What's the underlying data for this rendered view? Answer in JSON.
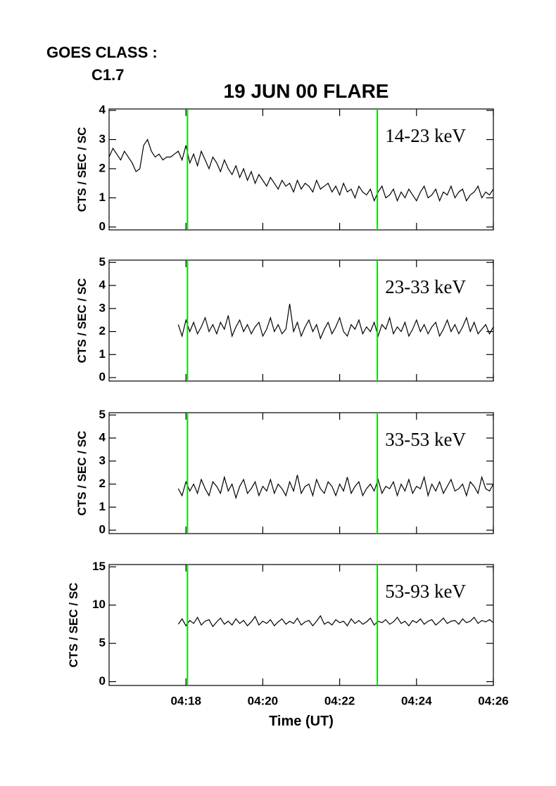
{
  "header": {
    "goes_label": "GOES CLASS :",
    "goes_class": "C1.7",
    "title": "19 JUN 00 FLARE"
  },
  "chart_data": [
    {
      "type": "line",
      "ylabel": "CTS / SEC / SC",
      "annotation": "14-23 keV",
      "xlim": [
        16,
        26
      ],
      "xticks": [
        18,
        20,
        22,
        24,
        26
      ],
      "ylim": [
        -0.1,
        4.05
      ],
      "yticks": [
        0,
        1,
        2,
        3,
        4
      ],
      "vlines": {
        "x": [
          18.04,
          22.98
        ],
        "color": "#00dd00"
      },
      "color": "#000000",
      "x": [
        16,
        16.1,
        16.2,
        16.3,
        16.4,
        16.5,
        16.6,
        16.7,
        16.8,
        16.9,
        17,
        17.1,
        17.2,
        17.3,
        17.4,
        17.5,
        17.6,
        17.7,
        17.8,
        17.9,
        18,
        18.1,
        18.2,
        18.3,
        18.4,
        18.5,
        18.6,
        18.7,
        18.8,
        18.9,
        19,
        19.1,
        19.2,
        19.3,
        19.4,
        19.5,
        19.6,
        19.7,
        19.8,
        19.9,
        20,
        20.1,
        20.2,
        20.3,
        20.4,
        20.5,
        20.6,
        20.7,
        20.8,
        20.9,
        21,
        21.1,
        21.2,
        21.3,
        21.4,
        21.5,
        21.6,
        21.7,
        21.8,
        21.9,
        22,
        22.1,
        22.2,
        22.3,
        22.4,
        22.5,
        22.6,
        22.7,
        22.8,
        22.9,
        23,
        23.1,
        23.2,
        23.3,
        23.4,
        23.5,
        23.6,
        23.7,
        23.8,
        23.9,
        24,
        24.1,
        24.2,
        24.3,
        24.4,
        24.5,
        24.6,
        24.7,
        24.8,
        24.9,
        25,
        25.1,
        25.2,
        25.3,
        25.4,
        25.5,
        25.6,
        25.7,
        25.8,
        25.9,
        26
      ],
      "values": [
        2.4,
        2.7,
        2.5,
        2.3,
        2.6,
        2.4,
        2.2,
        1.9,
        2.0,
        2.8,
        3.0,
        2.6,
        2.4,
        2.5,
        2.3,
        2.4,
        2.4,
        2.5,
        2.6,
        2.3,
        2.8,
        2.2,
        2.5,
        2.1,
        2.6,
        2.3,
        2.0,
        2.4,
        2.2,
        1.9,
        2.3,
        2.0,
        1.8,
        2.1,
        1.7,
        2.0,
        1.6,
        1.9,
        1.5,
        1.8,
        1.6,
        1.4,
        1.7,
        1.5,
        1.3,
        1.6,
        1.4,
        1.5,
        1.2,
        1.6,
        1.3,
        1.5,
        1.4,
        1.2,
        1.6,
        1.3,
        1.4,
        1.5,
        1.2,
        1.4,
        1.1,
        1.5,
        1.2,
        1.3,
        1.0,
        1.4,
        1.2,
        1.1,
        1.3,
        0.9,
        1.2,
        1.4,
        1.0,
        1.1,
        1.3,
        0.9,
        1.2,
        1.0,
        1.3,
        1.1,
        0.9,
        1.2,
        1.4,
        1.0,
        1.1,
        1.3,
        0.9,
        1.2,
        1.1,
        1.4,
        1.0,
        1.2,
        1.3,
        0.9,
        1.1,
        1.2,
        1.4,
        1.0,
        1.2,
        1.1,
        1.3
      ]
    },
    {
      "type": "line",
      "ylabel": "CTS / SEC / SC",
      "annotation": "23-33 keV",
      "xlim": [
        16,
        26
      ],
      "xticks": [
        18,
        20,
        22,
        24,
        26
      ],
      "ylim": [
        -0.15,
        5.1
      ],
      "yticks": [
        0,
        1,
        2,
        3,
        4,
        5
      ],
      "vlines": {
        "x": [
          18.04,
          22.98
        ],
        "color": "#00dd00"
      },
      "color": "#000000",
      "x": [
        17.8,
        17.9,
        18,
        18.1,
        18.2,
        18.3,
        18.4,
        18.5,
        18.6,
        18.7,
        18.8,
        18.9,
        19,
        19.1,
        19.2,
        19.3,
        19.4,
        19.5,
        19.6,
        19.7,
        19.8,
        19.9,
        20,
        20.1,
        20.2,
        20.3,
        20.4,
        20.5,
        20.6,
        20.7,
        20.8,
        20.9,
        21,
        21.1,
        21.2,
        21.3,
        21.4,
        21.5,
        21.6,
        21.7,
        21.8,
        21.9,
        22,
        22.1,
        22.2,
        22.3,
        22.4,
        22.5,
        22.6,
        22.7,
        22.8,
        22.9,
        23,
        23.1,
        23.2,
        23.3,
        23.4,
        23.5,
        23.6,
        23.7,
        23.8,
        23.9,
        24,
        24.1,
        24.2,
        24.3,
        24.4,
        24.5,
        24.6,
        24.7,
        24.8,
        24.9,
        25,
        25.1,
        25.2,
        25.3,
        25.4,
        25.5,
        25.6,
        25.7,
        25.8,
        25.9,
        26
      ],
      "values": [
        2.3,
        1.8,
        2.5,
        2.0,
        2.4,
        1.9,
        2.2,
        2.6,
        2.0,
        2.3,
        1.9,
        2.4,
        2.1,
        2.7,
        1.8,
        2.2,
        2.5,
        2.0,
        2.3,
        1.9,
        2.2,
        2.4,
        1.8,
        2.1,
        2.6,
        2.0,
        2.3,
        1.9,
        2.1,
        3.2,
        2.0,
        2.4,
        1.8,
        2.2,
        2.5,
        2.0,
        2.3,
        1.7,
        2.1,
        2.4,
        1.9,
        2.2,
        2.6,
        2.0,
        1.8,
        2.3,
        2.1,
        2.5,
        1.9,
        2.2,
        2.0,
        2.4,
        1.8,
        2.3,
        2.1,
        2.6,
        1.9,
        2.2,
        2.0,
        2.4,
        1.8,
        2.1,
        2.5,
        2.0,
        2.3,
        1.9,
        2.2,
        2.4,
        1.8,
        2.1,
        2.5,
        2.0,
        2.3,
        1.9,
        2.2,
        2.6,
        2.0,
        2.4,
        1.9,
        2.1,
        2.3,
        1.9,
        2.2
      ]
    },
    {
      "type": "line",
      "ylabel": "CTS / SEC / SC",
      "annotation": "33-53 keV",
      "xlim": [
        16,
        26
      ],
      "xticks": [
        18,
        20,
        22,
        24,
        26
      ],
      "ylim": [
        -0.15,
        5.1
      ],
      "yticks": [
        0,
        1,
        2,
        3,
        4,
        5
      ],
      "vlines": {
        "x": [
          18.04,
          22.98
        ],
        "color": "#00dd00"
      },
      "color": "#000000",
      "x": [
        17.8,
        17.9,
        18,
        18.1,
        18.2,
        18.3,
        18.4,
        18.5,
        18.6,
        18.7,
        18.8,
        18.9,
        19,
        19.1,
        19.2,
        19.3,
        19.4,
        19.5,
        19.6,
        19.7,
        19.8,
        19.9,
        20,
        20.1,
        20.2,
        20.3,
        20.4,
        20.5,
        20.6,
        20.7,
        20.8,
        20.9,
        21,
        21.1,
        21.2,
        21.3,
        21.4,
        21.5,
        21.6,
        21.7,
        21.8,
        21.9,
        22,
        22.1,
        22.2,
        22.3,
        22.4,
        22.5,
        22.6,
        22.7,
        22.8,
        22.9,
        23,
        23.1,
        23.2,
        23.3,
        23.4,
        23.5,
        23.6,
        23.7,
        23.8,
        23.9,
        24,
        24.1,
        24.2,
        24.3,
        24.4,
        24.5,
        24.6,
        24.7,
        24.8,
        24.9,
        25,
        25.1,
        25.2,
        25.3,
        25.4,
        25.5,
        25.6,
        25.7,
        25.8,
        25.9,
        26
      ],
      "values": [
        1.8,
        1.5,
        2.1,
        1.7,
        2.0,
        1.6,
        2.2,
        1.8,
        1.5,
        2.1,
        1.9,
        1.6,
        2.3,
        1.7,
        2.0,
        1.4,
        1.9,
        2.2,
        1.6,
        1.8,
        2.1,
        1.5,
        1.9,
        1.7,
        2.2,
        1.6,
        2.0,
        1.8,
        1.5,
        2.1,
        1.7,
        2.4,
        1.6,
        1.9,
        2.0,
        1.5,
        2.2,
        1.8,
        1.6,
        2.1,
        1.9,
        1.5,
        2.0,
        1.7,
        2.3,
        1.6,
        1.9,
        2.1,
        1.5,
        1.8,
        2.0,
        1.7,
        2.2,
        1.6,
        1.9,
        1.8,
        2.1,
        1.5,
        2.0,
        1.7,
        2.2,
        1.6,
        1.9,
        1.8,
        2.3,
        1.5,
        2.0,
        1.7,
        2.1,
        1.6,
        1.9,
        2.2,
        1.7,
        1.8,
        2.0,
        1.5,
        2.1,
        1.9,
        1.6,
        2.3,
        1.8,
        1.7,
        2.0
      ]
    },
    {
      "type": "line",
      "ylabel": "CTS / SEC / SC",
      "annotation": "53-93 keV",
      "xlabel": "Time (UT)",
      "xlim": [
        16,
        26
      ],
      "xticks": [
        {
          "value": 18,
          "label": "04:18"
        },
        {
          "value": 20,
          "label": "04:20"
        },
        {
          "value": 22,
          "label": "04:22"
        },
        {
          "value": 24,
          "label": "04:24"
        },
        {
          "value": 26,
          "label": "04:26"
        }
      ],
      "ylim": [
        -0.5,
        15.3
      ],
      "yticks": [
        0,
        5,
        10,
        15
      ],
      "vlines": {
        "x": [
          18.04,
          22.98
        ],
        "color": "#00dd00"
      },
      "color": "#000000",
      "x": [
        17.8,
        17.9,
        18,
        18.1,
        18.2,
        18.3,
        18.4,
        18.5,
        18.6,
        18.7,
        18.8,
        18.9,
        19,
        19.1,
        19.2,
        19.3,
        19.4,
        19.5,
        19.6,
        19.7,
        19.8,
        19.9,
        20,
        20.1,
        20.2,
        20.3,
        20.4,
        20.5,
        20.6,
        20.7,
        20.8,
        20.9,
        21,
        21.1,
        21.2,
        21.3,
        21.4,
        21.5,
        21.6,
        21.7,
        21.8,
        21.9,
        22,
        22.1,
        22.2,
        22.3,
        22.4,
        22.5,
        22.6,
        22.7,
        22.8,
        22.9,
        23,
        23.1,
        23.2,
        23.3,
        23.4,
        23.5,
        23.6,
        23.7,
        23.8,
        23.9,
        24,
        24.1,
        24.2,
        24.3,
        24.4,
        24.5,
        24.6,
        24.7,
        24.8,
        24.9,
        25,
        25.1,
        25.2,
        25.3,
        25.4,
        25.5,
        25.6,
        25.7,
        25.8,
        25.9,
        26
      ],
      "values": [
        7.5,
        8.2,
        7.3,
        8.0,
        7.6,
        8.4,
        7.4,
        7.9,
        8.1,
        7.2,
        7.8,
        8.3,
        7.5,
        7.9,
        7.4,
        8.2,
        7.6,
        8.0,
        7.3,
        7.8,
        8.5,
        7.4,
        7.9,
        7.6,
        8.1,
        7.3,
        7.8,
        8.2,
        7.5,
        7.9,
        7.6,
        8.3,
        7.4,
        7.8,
        8.0,
        7.3,
        7.9,
        8.6,
        7.5,
        7.8,
        7.4,
        8.1,
        7.7,
        7.9,
        7.3,
        8.2,
        7.6,
        8.0,
        7.5,
        7.8,
        8.3,
        7.4,
        7.9,
        7.7,
        8.1,
        7.5,
        7.8,
        8.4,
        7.6,
        7.9,
        7.3,
        8.0,
        7.7,
        8.2,
        7.5,
        7.9,
        8.1,
        7.4,
        7.8,
        8.3,
        7.6,
        7.9,
        8.0,
        7.5,
        8.2,
        7.7,
        7.9,
        8.4,
        7.6,
        8.0,
        7.8,
        8.1,
        7.7
      ]
    }
  ]
}
